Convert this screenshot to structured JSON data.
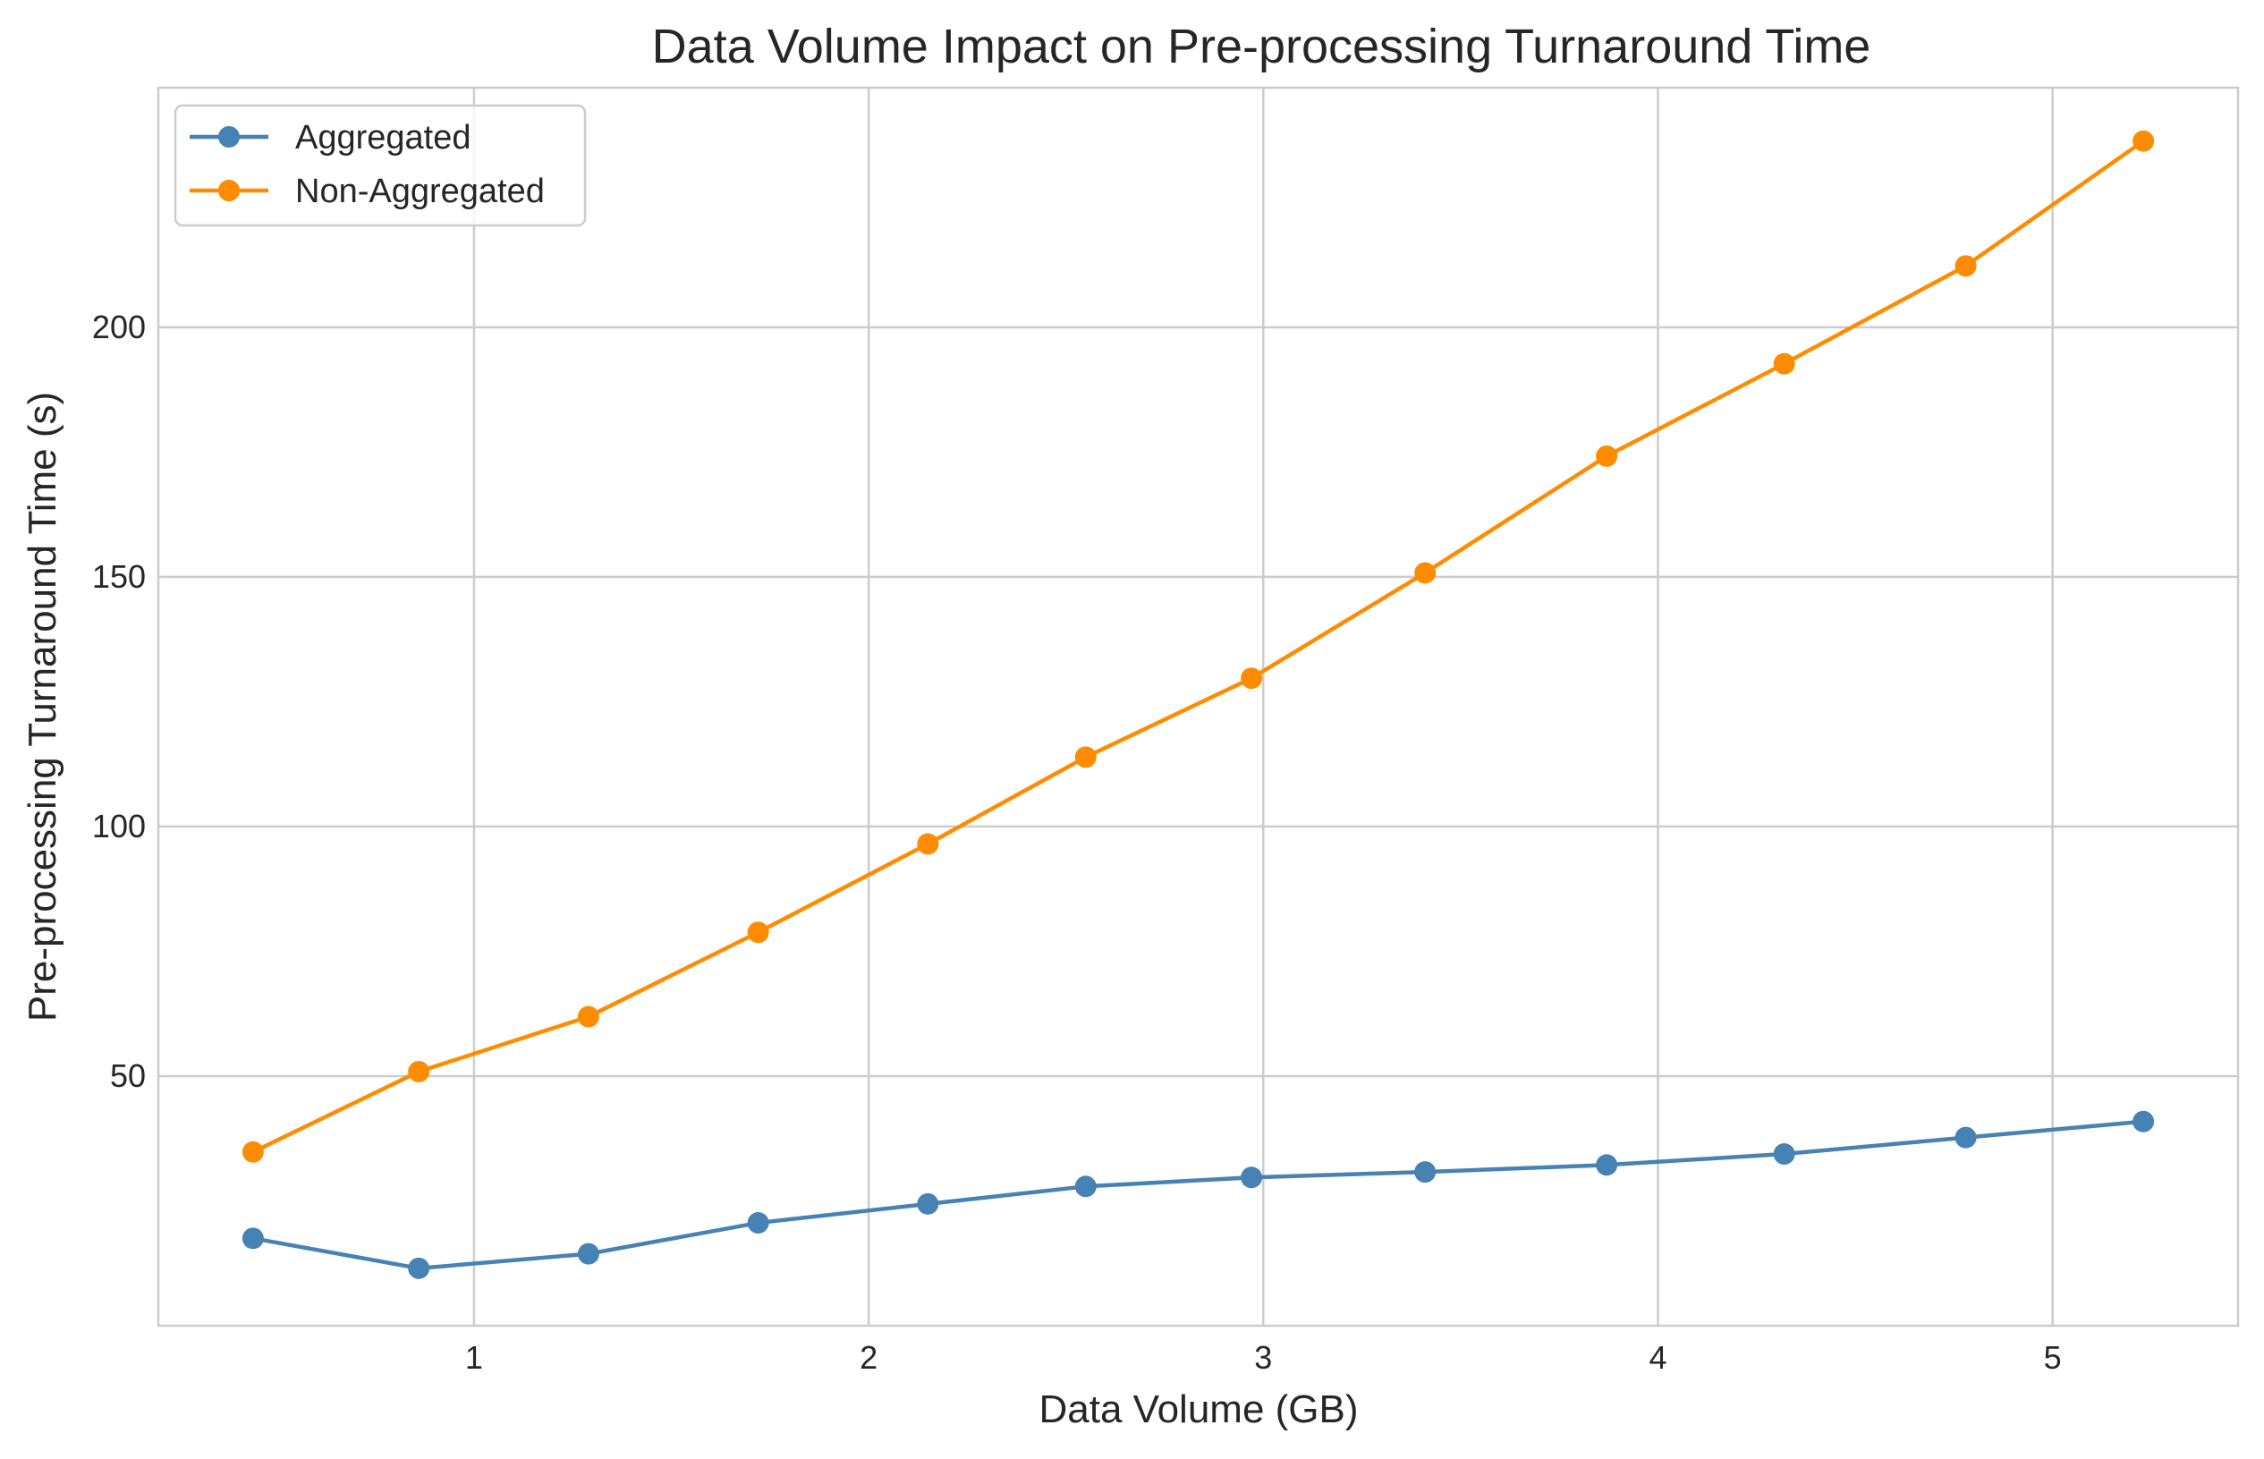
{
  "chart_data": {
    "type": "line",
    "title": "Data Volume Impact on Pre-processing Turnaround Time",
    "xlabel": "Data Volume (GB)",
    "ylabel": "Pre-processing Turnaround Time (s)",
    "xlim": [
      0.2,
      5.47
    ],
    "ylim": [
      0,
      248
    ],
    "xticks": [
      1,
      2,
      3,
      4,
      5
    ],
    "yticks": [
      50,
      100,
      150,
      200
    ],
    "grid": true,
    "legend_position": "top-left",
    "series": [
      {
        "name": "Aggregated",
        "color": "#4682b4",
        "x": [
          0.44,
          0.86,
          1.29,
          1.72,
          2.15,
          2.55,
          2.97,
          3.41,
          3.87,
          4.32,
          4.78,
          5.23
        ],
        "y": [
          17.5,
          11.5,
          14.4,
          20.6,
          24.4,
          27.9,
          29.7,
          30.8,
          32.2,
          34.4,
          37.7,
          40.9
        ]
      },
      {
        "name": "Non-Aggregated",
        "color": "#ff8c00",
        "x": [
          0.44,
          0.86,
          1.29,
          1.72,
          2.15,
          2.55,
          2.97,
          3.41,
          3.87,
          4.32,
          4.78,
          5.23
        ],
        "y": [
          34.8,
          50.9,
          61.9,
          78.8,
          96.5,
          113.9,
          129.7,
          150.8,
          174.2,
          192.7,
          212.3,
          237.3
        ]
      }
    ]
  }
}
